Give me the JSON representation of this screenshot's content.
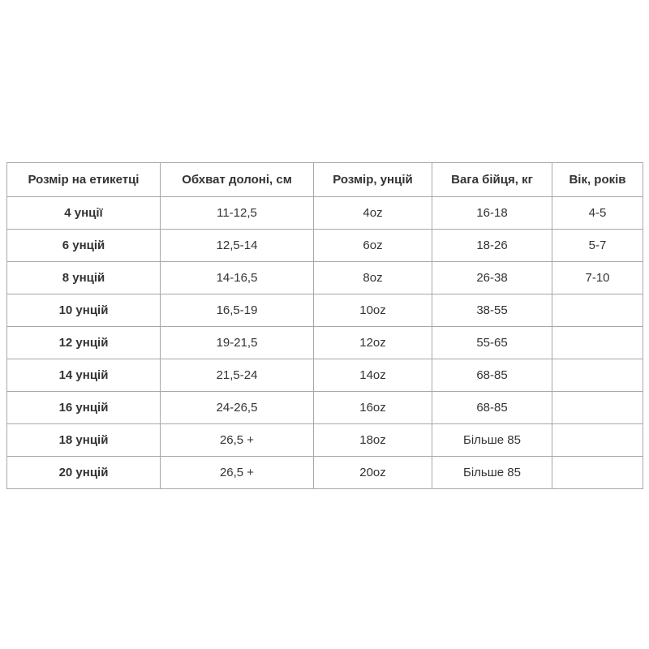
{
  "headers": [
    "Розмір на етикетці",
    "Обхват долоні, см",
    "Розмір, унцій",
    "Вага бійця, кг",
    "Вік, років"
  ],
  "rows": [
    [
      "4 унції",
      "11-12,5",
      "4oz",
      "16-18",
      "4-5"
    ],
    [
      "6 унцій",
      "12,5-14",
      "6oz",
      "18-26",
      "5-7"
    ],
    [
      "8 унцій",
      "14-16,5",
      "8oz",
      "26-38",
      "7-10"
    ],
    [
      "10 унцій",
      "16,5-19",
      "10oz",
      "38-55",
      ""
    ],
    [
      "12 унцій",
      "19-21,5",
      "12oz",
      "55-65",
      ""
    ],
    [
      "14 унцій",
      "21,5-24",
      "14oz",
      "68-85",
      ""
    ],
    [
      "16 унцій",
      "24-26,5",
      "16oz",
      "68-85",
      ""
    ],
    [
      "18 унцій",
      "26,5 +",
      "18oz",
      "Більше 85",
      ""
    ],
    [
      "20 унцій",
      "26,5 +",
      "20oz",
      "Більше 85",
      ""
    ]
  ]
}
